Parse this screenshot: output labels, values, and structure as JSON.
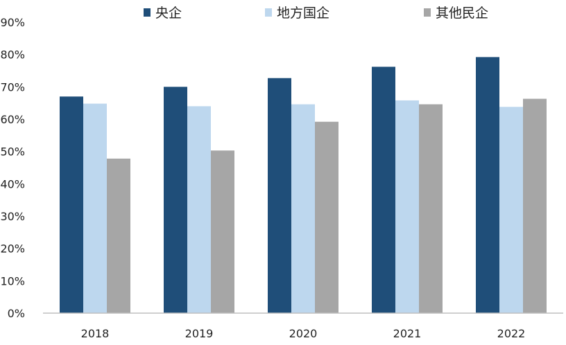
{
  "chart_data": {
    "type": "bar",
    "categories": [
      "2018",
      "2019",
      "2020",
      "2021",
      "2022"
    ],
    "series": [
      {
        "name": "央企",
        "color": "#1f4e79",
        "values": [
          67,
          70,
          72.7,
          76.2,
          79.2
        ]
      },
      {
        "name": "地方国企",
        "color": "#bdd7ee",
        "values": [
          64.8,
          64,
          64.6,
          65.8,
          63.8
        ]
      },
      {
        "name": "其他民企",
        "color": "#a6a6a6",
        "values": [
          47.8,
          50.3,
          59.2,
          64.6,
          66.3
        ]
      }
    ],
    "ylim": [
      0,
      90
    ],
    "yticks": [
      "0%",
      "10%",
      "20%",
      "30%",
      "40%",
      "50%",
      "60%",
      "70%",
      "80%",
      "90%"
    ],
    "ytick_values": [
      0,
      10,
      20,
      30,
      40,
      50,
      60,
      70,
      80,
      90
    ],
    "grid": false,
    "legend_position": "top-center"
  }
}
